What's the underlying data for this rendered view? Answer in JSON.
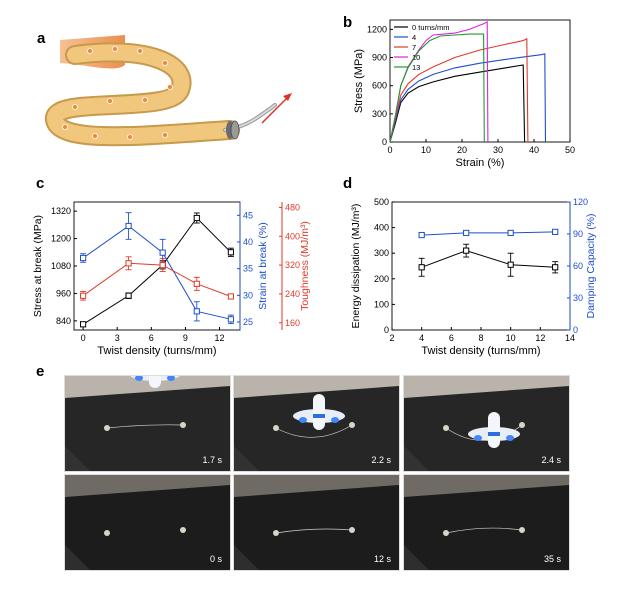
{
  "panels": {
    "a": "a",
    "b": "b",
    "c": "c",
    "d": "d",
    "e": "e"
  },
  "colors": {
    "black": "#000000",
    "blue": "#1f4fcf",
    "red": "#e03a2b",
    "magenta": "#e020e0",
    "green": "#1e9c2e",
    "fiber": "#f0c77d",
    "fiber_edge": "#c79a4c",
    "wall": "#f2a76a",
    "dots": "#ee8a3a"
  },
  "photos": {
    "row1": [
      "1.7 s",
      "2.2 s",
      "2.4 s"
    ],
    "row2": [
      "0 s",
      "12 s",
      "35 s"
    ]
  },
  "chart_data": [
    {
      "id": "b",
      "type": "line",
      "xlabel": "Strain (%)",
      "ylabel": "Stress (MPa)",
      "xlim": [
        0,
        50
      ],
      "ylim": [
        0,
        1300
      ],
      "xticks": [
        0,
        10,
        20,
        30,
        40,
        50
      ],
      "yticks": [
        0,
        300,
        600,
        900,
        1200
      ],
      "legend_position": "top-left",
      "series": [
        {
          "name": "0 turns/mm",
          "color": "#000000",
          "points": [
            [
              0,
              0
            ],
            [
              1.5,
              200
            ],
            [
              3,
              420
            ],
            [
              5,
              520
            ],
            [
              8,
              590
            ],
            [
              12,
              640
            ],
            [
              18,
              700
            ],
            [
              25,
              745
            ],
            [
              32,
              790
            ],
            [
              37,
              820
            ],
            [
              37.4,
              0
            ]
          ]
        },
        {
          "name": "4",
          "color": "#1f4fcf",
          "points": [
            [
              0,
              0
            ],
            [
              1.5,
              230
            ],
            [
              3,
              450
            ],
            [
              5,
              560
            ],
            [
              8,
              650
            ],
            [
              12,
              720
            ],
            [
              18,
              790
            ],
            [
              25,
              840
            ],
            [
              32,
              880
            ],
            [
              38,
              910
            ],
            [
              42,
              930
            ],
            [
              43,
              940
            ],
            [
              43.2,
              0
            ]
          ]
        },
        {
          "name": "7",
          "color": "#e03a2b",
          "points": [
            [
              0,
              0
            ],
            [
              1.5,
              250
            ],
            [
              3,
              500
            ],
            [
              5,
              620
            ],
            [
              8,
              720
            ],
            [
              12,
              800
            ],
            [
              18,
              900
            ],
            [
              25,
              980
            ],
            [
              32,
              1040
            ],
            [
              37,
              1080
            ],
            [
              38,
              1100
            ],
            [
              38.3,
              0
            ]
          ]
        },
        {
          "name": "10",
          "color": "#e020e0",
          "points": [
            [
              0,
              0
            ],
            [
              1.5,
              280
            ],
            [
              3,
              600
            ],
            [
              5,
              800
            ],
            [
              8,
              980
            ],
            [
              10,
              1080
            ],
            [
              12,
              1140
            ],
            [
              15,
              1150
            ],
            [
              18,
              1160
            ],
            [
              22,
              1200
            ],
            [
              26,
              1260
            ],
            [
              27,
              1280
            ],
            [
              27.2,
              0
            ]
          ]
        },
        {
          "name": "13",
          "color": "#1e9c2e",
          "points": [
            [
              0,
              0
            ],
            [
              1.5,
              280
            ],
            [
              3,
              600
            ],
            [
              5,
              790
            ],
            [
              8,
              970
            ],
            [
              11,
              1080
            ],
            [
              14,
              1130
            ],
            [
              18,
              1140
            ],
            [
              22,
              1150
            ],
            [
              25,
              1150
            ],
            [
              26,
              1150
            ],
            [
              26.2,
              0
            ]
          ]
        }
      ]
    },
    {
      "id": "c",
      "type": "line",
      "xlabel": "Twist density (turns/mm)",
      "x": [
        0,
        4,
        7,
        10,
        13
      ],
      "xlim": [
        -0.8,
        13.8
      ],
      "xticks": [
        0,
        3,
        6,
        9,
        12
      ],
      "axes": [
        {
          "label": "Stress at break (MPa)",
          "side": "left",
          "color": "#000000",
          "ylim": [
            800,
            1360
          ],
          "ticks": [
            840,
            960,
            1080,
            1200,
            1320
          ]
        },
        {
          "label": "Strain at break (%)",
          "side": "right",
          "color": "#1f4fcf",
          "ylim": [
            23.5,
            47.5
          ],
          "ticks": [
            25,
            30,
            35,
            40,
            45
          ]
        },
        {
          "label": "Toughness (MJ/m³)",
          "side": "right-outer",
          "color": "#e03a2b",
          "ylim": [
            140,
            495
          ],
          "ticks": [
            160,
            240,
            320,
            400,
            480
          ]
        }
      ],
      "series": [
        {
          "axis": 0,
          "color": "#000000",
          "values": [
            825,
            950,
            1085,
            1290,
            1140
          ],
          "errors": [
            8,
            12,
            18,
            22,
            18
          ]
        },
        {
          "axis": 1,
          "color": "#1f4fcf",
          "values": [
            37,
            43,
            38,
            27,
            25.5
          ],
          "errors": [
            0.8,
            2.5,
            2.5,
            1.8,
            0.8
          ]
        },
        {
          "axis": 2,
          "color": "#e03a2b",
          "values": [
            235,
            325,
            320,
            268,
            233
          ],
          "errors": [
            12,
            18,
            18,
            18,
            6
          ]
        }
      ]
    },
    {
      "id": "d",
      "type": "line",
      "xlabel": "Twist density (turns/mm)",
      "x": [
        4,
        7,
        10,
        13
      ],
      "xlim": [
        2,
        14
      ],
      "xticks": [
        2,
        4,
        6,
        8,
        10,
        12,
        14
      ],
      "axes": [
        {
          "label": "Energy dissipation (MJ/m³)",
          "side": "left",
          "color": "#000000",
          "ylim": [
            0,
            500
          ],
          "ticks": [
            0,
            100,
            200,
            300,
            400,
            500
          ]
        },
        {
          "label": "Damping Capacity (%)",
          "side": "right",
          "color": "#1f4fcf",
          "ylim": [
            0,
            120
          ],
          "ticks": [
            0,
            30,
            60,
            90,
            120
          ]
        }
      ],
      "series": [
        {
          "axis": 0,
          "color": "#000000",
          "values": [
            245,
            310,
            255,
            245
          ],
          "errors": [
            35,
            25,
            45,
            22
          ]
        },
        {
          "axis": 1,
          "color": "#1f4fcf",
          "values": [
            89,
            91,
            91,
            92
          ],
          "errors": [
            1.5,
            2,
            2,
            2
          ]
        }
      ]
    }
  ]
}
